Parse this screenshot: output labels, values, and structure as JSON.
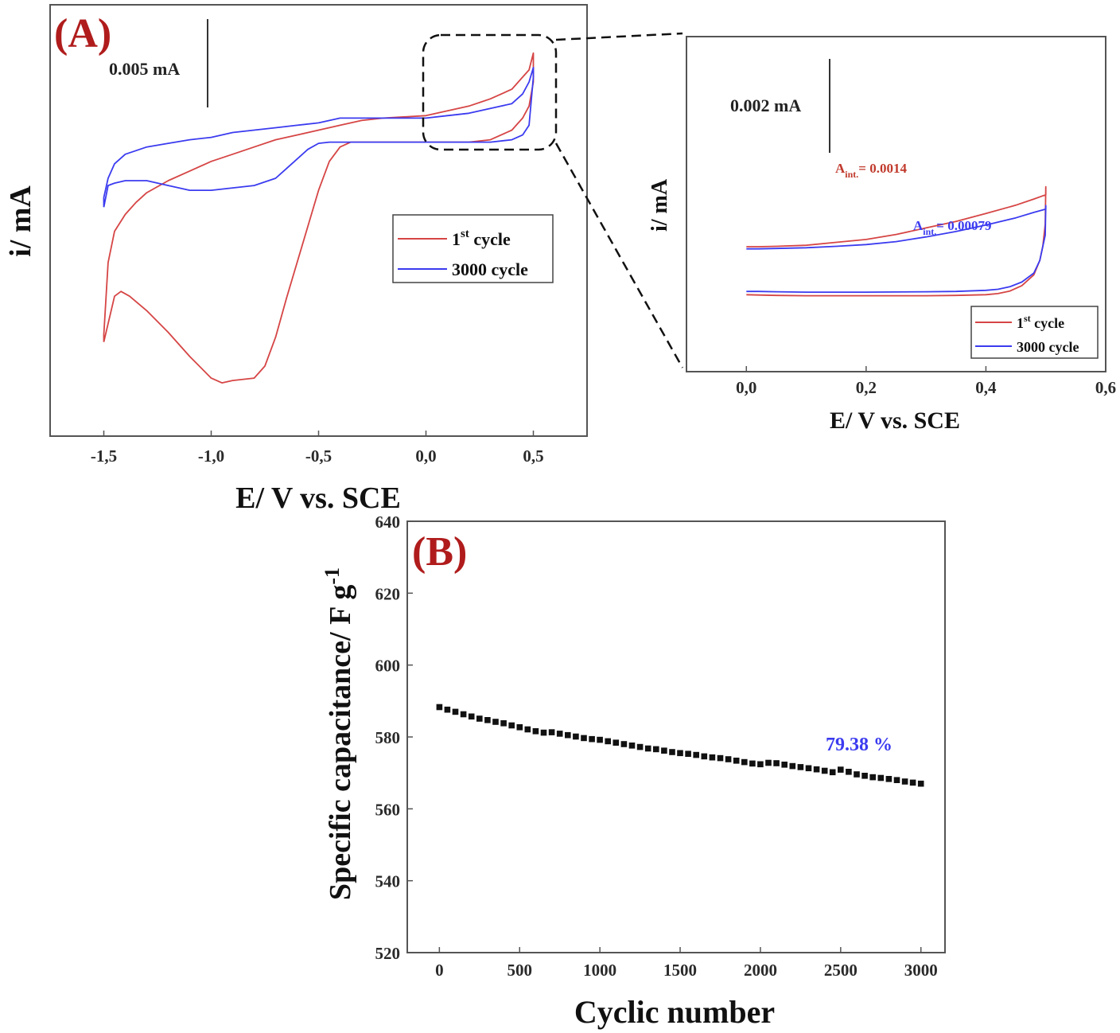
{
  "chart_data": [
    {
      "id": "A_main",
      "type": "line",
      "panel_label": "(A)",
      "xlabel": "E/ V vs. SCE",
      "ylabel": "i/ mA",
      "xlim": [
        -1.75,
        0.75
      ],
      "xticks": [
        "-1,5",
        "-1,0",
        "-0,5",
        "0,0",
        "0,5"
      ],
      "xtick_values": [
        -1.5,
        -1.0,
        -0.5,
        0.0,
        0.5
      ],
      "scale_bar_label": "0.005 mA",
      "legend_position": "right-middle",
      "series": [
        {
          "name": "1st cycle",
          "label_main": "1",
          "label_sup": "st",
          "label_rest": " cycle",
          "color": "#d64545",
          "x": [
            -1.5,
            -1.45,
            -1.42,
            -1.38,
            -1.3,
            -1.2,
            -1.1,
            -1.0,
            -0.95,
            -0.9,
            -0.8,
            -0.75,
            -0.7,
            -0.65,
            -0.6,
            -0.55,
            -0.5,
            -0.45,
            -0.4,
            -0.35,
            -0.3,
            -0.25,
            -0.2,
            -0.1,
            0.0,
            0.1,
            0.2,
            0.3,
            0.4,
            0.45,
            0.48,
            0.49,
            0.5,
            0.5,
            0.48,
            0.45,
            0.4,
            0.3,
            0.2,
            0.0,
            -0.2,
            -0.3,
            -0.4,
            -0.5,
            -0.6,
            -0.7,
            -0.8,
            -0.9,
            -1.0,
            -1.1,
            -1.2,
            -1.3,
            -1.35,
            -1.4,
            -1.45,
            -1.48,
            -1.5,
            -1.5
          ],
          "y": [
            -6.8,
            -4.9,
            -4.7,
            -4.9,
            -5.5,
            -6.4,
            -7.4,
            -8.3,
            -8.5,
            -8.4,
            -8.3,
            -7.8,
            -6.6,
            -5.0,
            -3.5,
            -2.0,
            -0.5,
            0.7,
            1.3,
            1.5,
            1.5,
            1.5,
            1.5,
            1.5,
            1.5,
            1.5,
            1.5,
            1.6,
            2.0,
            2.5,
            3.0,
            3.5,
            4.0,
            5.2,
            4.5,
            4.2,
            3.7,
            3.3,
            3.0,
            2.6,
            2.5,
            2.4,
            2.2,
            2.0,
            1.8,
            1.6,
            1.3,
            1.0,
            0.7,
            0.3,
            -0.1,
            -0.6,
            -1.0,
            -1.5,
            -2.2,
            -3.5,
            -6.5,
            -6.8
          ]
        },
        {
          "name": "3000 cycle",
          "label_main": "3000 cycle",
          "label_sup": "",
          "label_rest": "",
          "color": "#3b3bf0",
          "x": [
            -1.5,
            -1.48,
            -1.45,
            -1.4,
            -1.3,
            -1.2,
            -1.1,
            -1.0,
            -0.9,
            -0.8,
            -0.7,
            -0.65,
            -0.6,
            -0.55,
            -0.5,
            -0.45,
            -0.4,
            -0.35,
            -0.3,
            -0.2,
            -0.1,
            0.0,
            0.1,
            0.2,
            0.3,
            0.4,
            0.45,
            0.48,
            0.5,
            0.5,
            0.48,
            0.45,
            0.4,
            0.3,
            0.2,
            0.1,
            0.0,
            -0.1,
            -0.2,
            -0.3,
            -0.4,
            -0.5,
            -0.6,
            -0.7,
            -0.8,
            -0.9,
            -1.0,
            -1.1,
            -1.2,
            -1.3,
            -1.4,
            -1.45,
            -1.48,
            -1.5,
            -1.5
          ],
          "y": [
            -1.2,
            -0.3,
            -0.2,
            -0.1,
            -0.1,
            -0.3,
            -0.5,
            -0.5,
            -0.4,
            -0.3,
            0.0,
            0.4,
            0.8,
            1.2,
            1.45,
            1.5,
            1.5,
            1.5,
            1.5,
            1.5,
            1.5,
            1.5,
            1.5,
            1.5,
            1.5,
            1.6,
            1.8,
            2.2,
            4.2,
            4.6,
            4.0,
            3.5,
            3.1,
            2.9,
            2.7,
            2.6,
            2.5,
            2.5,
            2.5,
            2.5,
            2.5,
            2.3,
            2.2,
            2.1,
            2.0,
            1.9,
            1.7,
            1.6,
            1.45,
            1.3,
            1.0,
            0.6,
            0.0,
            -0.8,
            -1.2
          ]
        }
      ]
    },
    {
      "id": "A_inset",
      "type": "line",
      "xlabel": "E/ V vs. SCE",
      "ylabel": "i/ mA",
      "xlim": [
        -0.1,
        0.6
      ],
      "xticks": [
        "0,0",
        "0,2",
        "0,4",
        "0,6"
      ],
      "xtick_values": [
        0.0,
        0.2,
        0.4,
        0.6
      ],
      "scale_bar_label": "0.002 mA",
      "legend_position": "bottom-right",
      "annotations": [
        {
          "main": "A",
          "sub": "int.",
          "rest": "= 0.0014",
          "color": "#c0392b"
        },
        {
          "main": "A",
          "sub": "int.",
          "rest": "= 0.00079",
          "color": "#3b3bf0"
        }
      ],
      "series": [
        {
          "name": "1st cycle",
          "label_main": "1",
          "label_sup": "st",
          "label_rest": " cycle",
          "color": "#d64545",
          "x": [
            0.0,
            0.02,
            0.05,
            0.1,
            0.15,
            0.2,
            0.25,
            0.3,
            0.35,
            0.4,
            0.45,
            0.48,
            0.5,
            0.5,
            0.499,
            0.495,
            0.49,
            0.48,
            0.46,
            0.44,
            0.42,
            0.4,
            0.35,
            0.3,
            0.2,
            0.1,
            0.05,
            0.02,
            0.0,
            0.0
          ],
          "y": [
            -0.22,
            -0.22,
            -0.21,
            -0.18,
            -0.1,
            -0.02,
            0.12,
            0.3,
            0.48,
            0.7,
            0.93,
            1.1,
            1.22,
            1.44,
            0.4,
            -0.2,
            -0.6,
            -1.0,
            -1.3,
            -1.45,
            -1.52,
            -1.55,
            -1.57,
            -1.58,
            -1.58,
            -1.58,
            -1.57,
            -1.56,
            -1.55,
            -1.55
          ]
        },
        {
          "name": "3000 cycle",
          "label_main": "3000 cycle",
          "label_sup": "",
          "label_rest": "",
          "color": "#3b3bf0",
          "x": [
            0.0,
            0.02,
            0.05,
            0.1,
            0.15,
            0.2,
            0.25,
            0.3,
            0.35,
            0.4,
            0.45,
            0.48,
            0.5,
            0.5,
            0.499,
            0.49,
            0.48,
            0.46,
            0.44,
            0.42,
            0.4,
            0.35,
            0.3,
            0.2,
            0.1,
            0.05,
            0.02,
            0.0,
            0.0
          ],
          "y": [
            -0.28,
            -0.28,
            -0.27,
            -0.25,
            -0.21,
            -0.16,
            -0.08,
            0.05,
            0.2,
            0.38,
            0.58,
            0.73,
            0.82,
            0.92,
            0.1,
            -0.6,
            -0.95,
            -1.2,
            -1.33,
            -1.4,
            -1.43,
            -1.46,
            -1.47,
            -1.48,
            -1.48,
            -1.47,
            -1.46,
            -1.46,
            -1.46
          ]
        }
      ]
    },
    {
      "id": "B",
      "type": "scatter",
      "panel_label": "(B)",
      "xlabel": "Cyclic number",
      "ylabel_main": "Specific capacitance/ F g",
      "ylabel_sup": "-1",
      "xlim": [
        -200,
        3150
      ],
      "ylim": [
        520,
        640
      ],
      "xticks": [
        0,
        500,
        1000,
        1500,
        2000,
        2500,
        3000
      ],
      "yticks": [
        520,
        540,
        560,
        580,
        600,
        620,
        640
      ],
      "annotation": "79.38 %",
      "annotation_color": "#3b3bf0",
      "marker_color": "#111111",
      "series": [
        {
          "name": "Specific capacitance",
          "x": [
            0,
            50,
            100,
            150,
            200,
            250,
            300,
            350,
            400,
            450,
            500,
            550,
            600,
            650,
            700,
            750,
            800,
            850,
            900,
            950,
            1000,
            1050,
            1100,
            1150,
            1200,
            1250,
            1300,
            1350,
            1400,
            1450,
            1500,
            1550,
            1600,
            1650,
            1700,
            1750,
            1800,
            1850,
            1900,
            1950,
            2000,
            2050,
            2100,
            2150,
            2200,
            2250,
            2300,
            2350,
            2400,
            2450,
            2500,
            2550,
            2600,
            2650,
            2700,
            2750,
            2800,
            2850,
            2900,
            2950,
            3000
          ],
          "y": [
            588.3,
            587.6,
            587.0,
            586.3,
            585.7,
            585.1,
            584.7,
            584.2,
            583.8,
            583.2,
            582.7,
            582.1,
            581.6,
            581.2,
            581.3,
            580.9,
            580.5,
            580.1,
            579.7,
            579.4,
            579.2,
            578.8,
            578.4,
            578.0,
            577.6,
            577.2,
            576.8,
            576.6,
            576.2,
            575.8,
            575.5,
            575.3,
            575.0,
            574.6,
            574.3,
            574.1,
            573.8,
            573.4,
            573.0,
            572.6,
            572.4,
            572.8,
            572.7,
            572.3,
            571.9,
            571.6,
            571.3,
            571.0,
            570.6,
            570.2,
            570.9,
            570.3,
            569.6,
            569.2,
            568.8,
            568.6,
            568.3,
            568.0,
            567.6,
            567.3,
            567.0
          ]
        }
      ]
    }
  ]
}
